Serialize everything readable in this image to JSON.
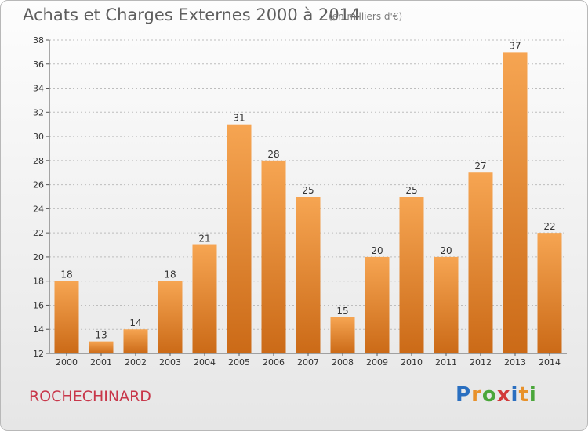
{
  "header": {
    "title": "Achats et Charges Externes 2000 à 2014",
    "subtitle": "(en milliers d'€)"
  },
  "footer": {
    "commune": "ROCHECHINARD",
    "logo": [
      "P",
      "r",
      "o",
      "x",
      "i",
      "t",
      "i"
    ]
  },
  "colors": {
    "bar_light": "#f6a552",
    "bar_dark": "#cb6a17",
    "commune_text": "#c8374a"
  },
  "chart_data": {
    "type": "bar",
    "title": "Achats et Charges Externes 2000 à 2014",
    "subtitle": "(en milliers d'€)",
    "xlabel": "",
    "ylabel": "",
    "categories": [
      "2000",
      "2001",
      "2002",
      "2003",
      "2004",
      "2005",
      "2006",
      "2007",
      "2008",
      "2009",
      "2010",
      "2011",
      "2012",
      "2013",
      "2014"
    ],
    "values": [
      18,
      13,
      14,
      18,
      21,
      31,
      28,
      25,
      15,
      20,
      25,
      20,
      27,
      37,
      22
    ],
    "ylim": [
      12,
      38
    ],
    "yticks": [
      12,
      14,
      16,
      18,
      20,
      22,
      24,
      26,
      28,
      30,
      32,
      34,
      36,
      38
    ],
    "grid": true,
    "legend": "none"
  }
}
